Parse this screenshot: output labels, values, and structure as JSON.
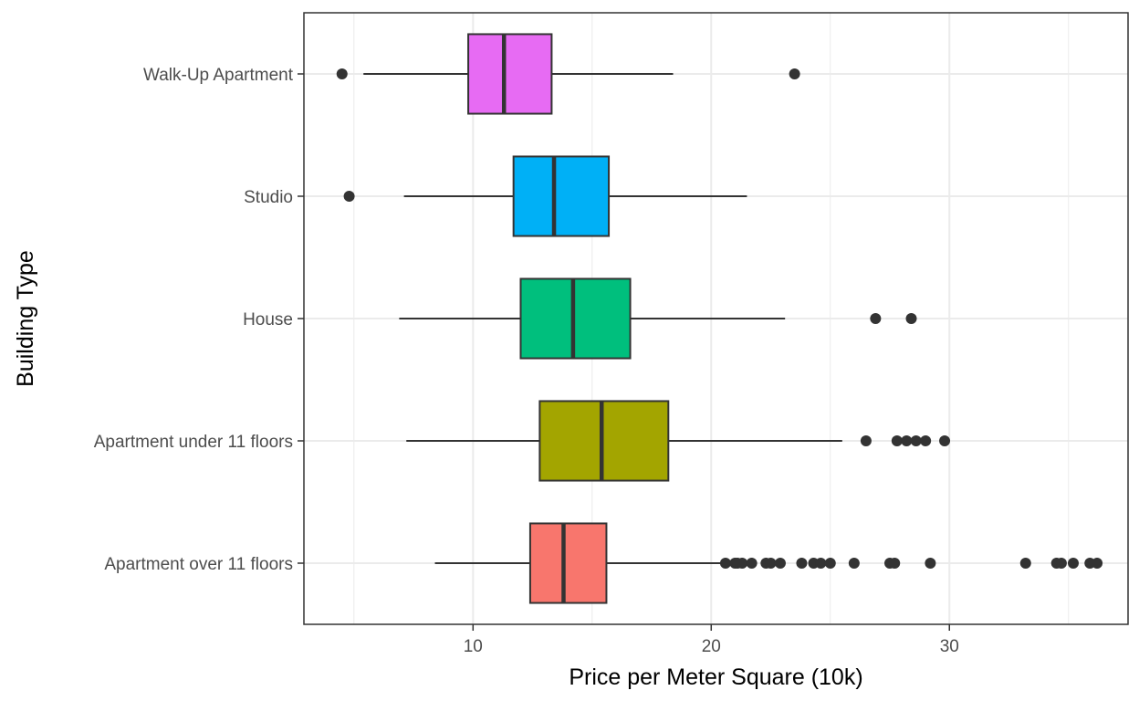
{
  "chart_data": {
    "type": "boxplot",
    "orientation": "horizontal",
    "xlabel": "Price per Meter Square (10k)",
    "ylabel": "Building Type",
    "xlim": [
      2.9,
      37.5
    ],
    "x_ticks": [
      10,
      20,
      30
    ],
    "grid": true,
    "legend": "none",
    "categories": [
      "Apartment over 11 floors",
      "Apartment under 11 floors",
      "House",
      "Studio",
      "Walk-Up Apartment"
    ],
    "series": [
      {
        "category": "Apartment over 11 floors",
        "color": "#F8766D",
        "whisker_low": 8.4,
        "q1": 12.4,
        "median": 13.8,
        "q3": 15.6,
        "whisker_high": 20.4,
        "outliers": [
          20.6,
          21.0,
          21.1,
          21.3,
          21.7,
          22.3,
          22.5,
          22.9,
          23.8,
          24.3,
          24.6,
          25.0,
          26.0,
          27.5,
          27.7,
          29.2,
          33.2,
          34.5,
          34.7,
          35.2,
          35.9,
          36.2
        ]
      },
      {
        "category": "Apartment under 11 floors",
        "color": "#A3A500",
        "whisker_low": 7.2,
        "q1": 12.8,
        "median": 15.4,
        "q3": 18.2,
        "whisker_high": 25.5,
        "outliers": [
          26.5,
          27.8,
          28.2,
          28.6,
          29.0,
          29.8
        ]
      },
      {
        "category": "House",
        "color": "#00BF7D",
        "whisker_low": 6.9,
        "q1": 12.0,
        "median": 14.2,
        "q3": 16.6,
        "whisker_high": 23.1,
        "outliers": [
          26.9,
          28.4
        ]
      },
      {
        "category": "Studio",
        "color": "#00B0F6",
        "whisker_low": 7.1,
        "q1": 11.7,
        "median": 13.4,
        "q3": 15.7,
        "whisker_high": 21.5,
        "outliers": [
          4.8
        ]
      },
      {
        "category": "Walk-Up Apartment",
        "color": "#E76BF3",
        "whisker_low": 5.4,
        "q1": 9.8,
        "median": 11.3,
        "q3": 13.3,
        "whisker_high": 18.4,
        "outliers": [
          4.5,
          23.5
        ]
      }
    ]
  }
}
